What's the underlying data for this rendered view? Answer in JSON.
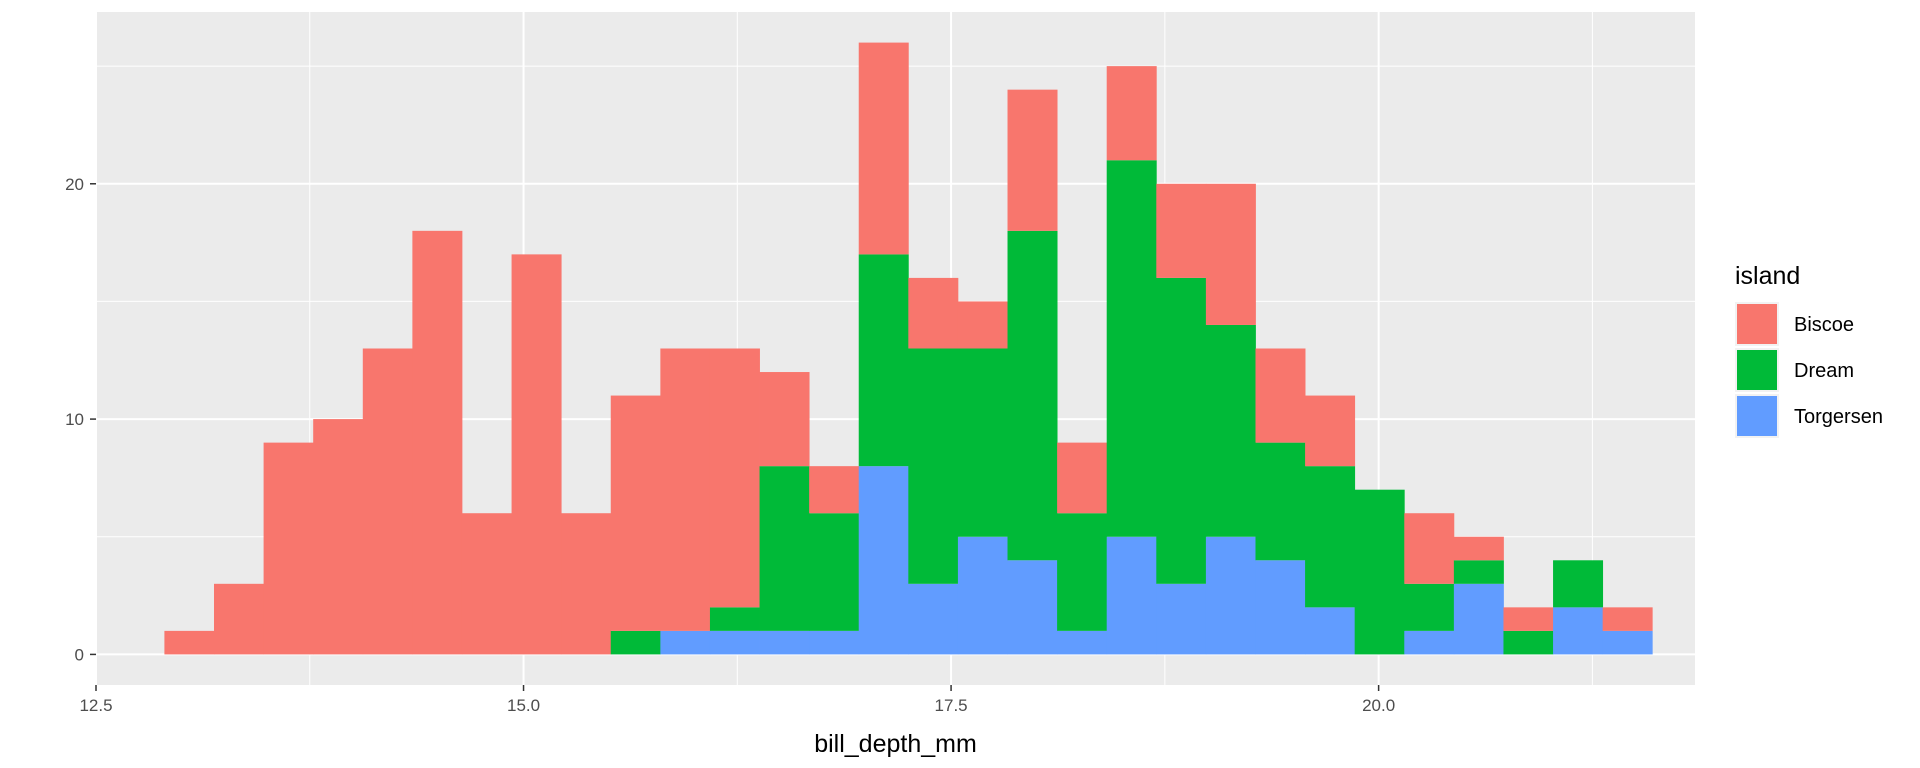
{
  "chart_data": {
    "type": "bar",
    "subtype": "stacked-histogram",
    "xlabel": "bill_depth_mm",
    "ylabel": "",
    "xlim": [
      12.5,
      21.85
    ],
    "ylim": [
      -1.3,
      27.3
    ],
    "xticks": [
      12.5,
      15.0,
      17.5,
      20.0
    ],
    "xtick_labels": [
      "12.5",
      "15.0",
      "17.5",
      "20.0"
    ],
    "yticks": [
      0,
      10,
      20
    ],
    "ytick_labels": [
      "0",
      "10",
      "20"
    ],
    "grid": true,
    "legend_title": "island",
    "legend_position": "right",
    "bin_starts": [
      12.9,
      13.19,
      13.48,
      13.77,
      14.06,
      14.35,
      14.64,
      14.93,
      15.22,
      15.51,
      15.8,
      16.09,
      16.38,
      16.67,
      16.96,
      17.25,
      17.54,
      17.83,
      18.12,
      18.41,
      18.7,
      18.99,
      19.28,
      19.57,
      19.86,
      20.15,
      20.44,
      20.73,
      21.02,
      21.31
    ],
    "bin_width": 0.29,
    "series": [
      {
        "name": "Biscoe",
        "color": "#F8766D",
        "values": [
          1,
          3,
          9,
          10,
          13,
          18,
          6,
          17,
          6,
          10,
          12,
          11,
          4,
          2,
          9,
          3,
          2,
          6,
          3,
          4,
          4,
          6,
          4,
          3,
          0,
          3,
          1,
          1,
          0,
          1
        ]
      },
      {
        "name": "Dream",
        "color": "#00BA38",
        "values": [
          0,
          0,
          0,
          0,
          0,
          0,
          0,
          0,
          0,
          1,
          0,
          1,
          7,
          5,
          9,
          10,
          8,
          14,
          5,
          16,
          13,
          9,
          5,
          6,
          7,
          2,
          1,
          1,
          2,
          0
        ]
      },
      {
        "name": "Torgersen",
        "color": "#619CFF",
        "values": [
          0,
          0,
          0,
          0,
          0,
          0,
          0,
          0,
          0,
          0,
          1,
          1,
          1,
          1,
          8,
          3,
          5,
          4,
          1,
          5,
          3,
          5,
          4,
          2,
          0,
          1,
          3,
          0,
          2,
          1
        ]
      }
    ]
  }
}
